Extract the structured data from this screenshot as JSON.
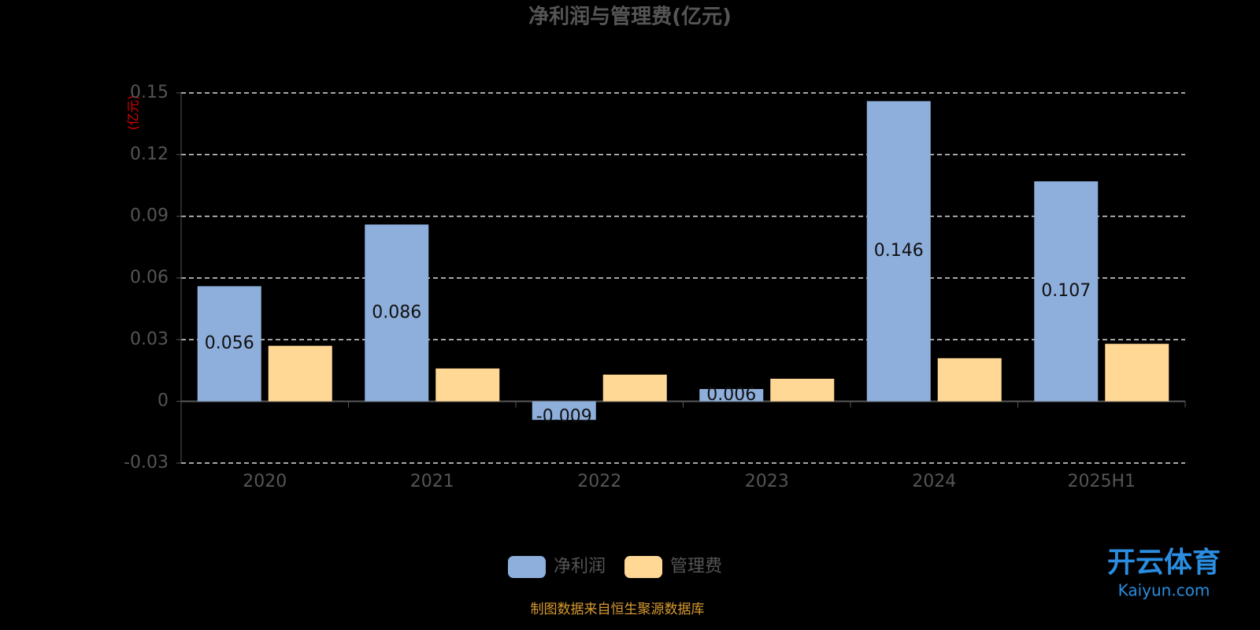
{
  "chart_data": {
    "type": "bar",
    "title": "净利润与管理费(亿元)",
    "y_label": "(亿元)",
    "categories": [
      "2020",
      "2021",
      "2022",
      "2023",
      "2024",
      "2025H1"
    ],
    "series": [
      {
        "name": "净利润",
        "color": "#8eaedb",
        "values": [
          0.056,
          0.086,
          -0.009,
          0.006,
          0.146,
          0.107
        ],
        "labels": true
      },
      {
        "name": "管理费",
        "color": "#ffd896",
        "values": [
          0.027,
          0.016,
          0.013,
          0.011,
          0.021,
          0.028
        ],
        "labels": false
      }
    ],
    "ylim": [
      -0.03,
      0.15
    ],
    "yticks": [
      -0.03,
      0,
      0.03,
      0.06,
      0.09,
      0.12,
      0.15
    ],
    "grid": true,
    "legend": "bottom",
    "source": "制图数据来自恒生聚源数据库",
    "watermark": [
      "开云体育",
      "Kaiyun.com"
    ]
  }
}
